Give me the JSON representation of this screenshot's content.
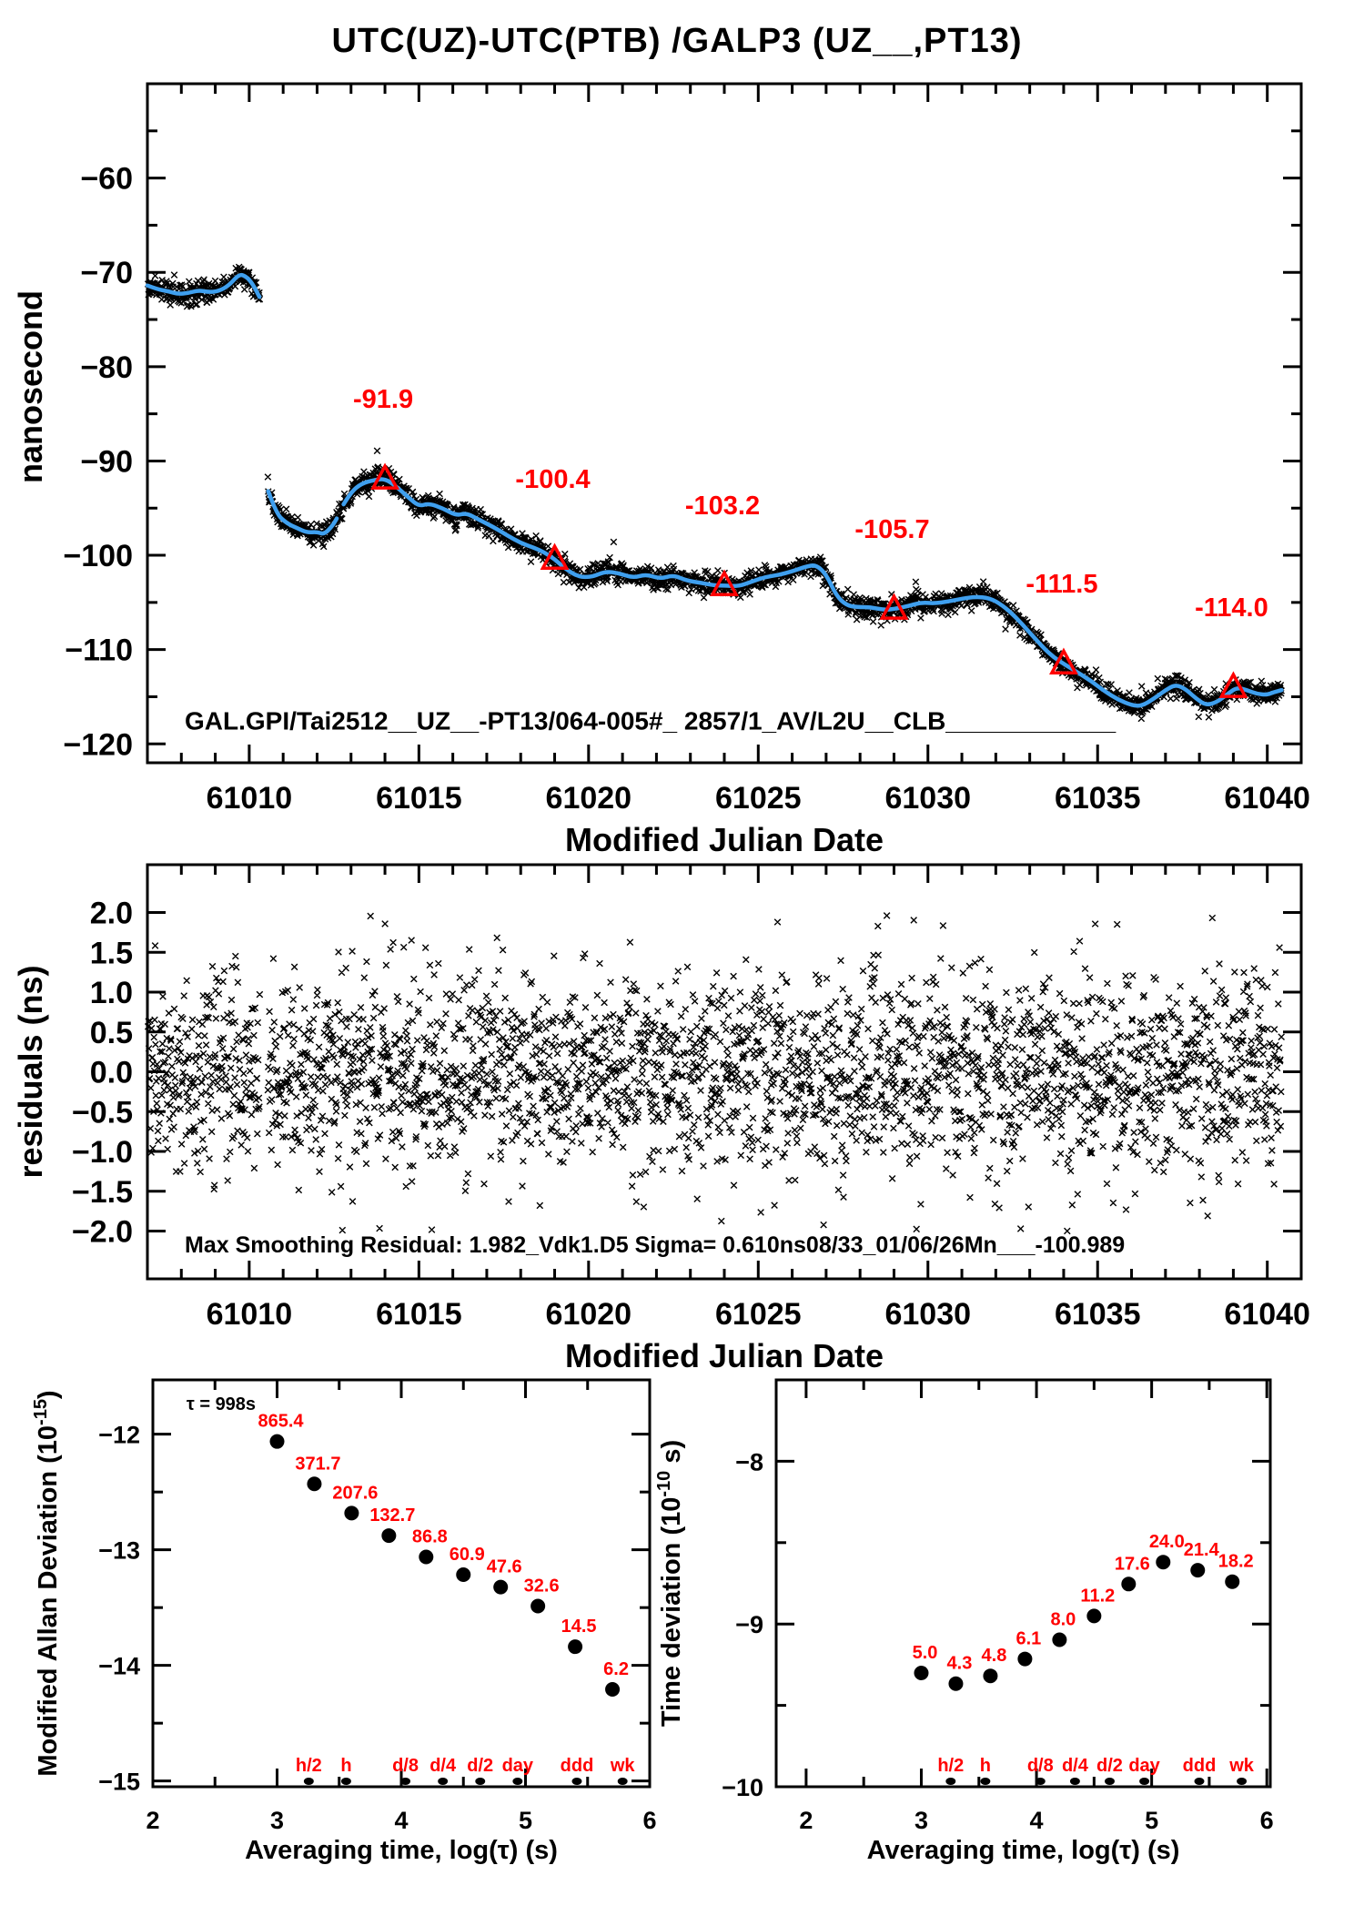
{
  "title": "UTC(UZ)-UTC(PTB)  /GALP3  (UZ__,PT13)",
  "colors": {
    "red": "#ff0000",
    "blue": "#3f9fee",
    "black": "#000000"
  },
  "chart_data": [
    {
      "id": "phase",
      "type": "line",
      "title": "UTC(UZ)-UTC(PTB)  /GALP3  (UZ__,PT13)",
      "xlabel": "Modified Julian Date",
      "ylabel": "nanosecond",
      "xlim": [
        61007,
        61041
      ],
      "ylim": [
        -122,
        -50
      ],
      "xticks": [
        61010,
        61015,
        61020,
        61025,
        61030,
        61035,
        61040
      ],
      "yticks": [
        -60,
        -70,
        -80,
        -90,
        -100,
        -110,
        -120
      ],
      "annotation": "GAL.GPI/Tai2512__UZ__-PT13/064-005#_  2857/1_AV/L2U__CLB____________",
      "annotation_pos": [
        61008.1,
        -118.5
      ],
      "scatter_sigma_ns": 0.52,
      "scatter_step_days": 0.0115,
      "gap_mjd": [
        61010.32,
        61010.55
      ],
      "calibration_points": [
        {
          "mjd": 61014,
          "ns": -91.9,
          "label": "-91.9"
        },
        {
          "mjd": 61019,
          "ns": -100.4,
          "label": "-100.4"
        },
        {
          "mjd": 61024,
          "ns": -103.2,
          "label": "-103.2"
        },
        {
          "mjd": 61029,
          "ns": -105.7,
          "label": "-105.7"
        },
        {
          "mjd": 61034,
          "ns": -111.5,
          "label": "-111.5"
        },
        {
          "mjd": 61039,
          "ns": -114.0,
          "label": "-114.0"
        }
      ],
      "curve_segments": [
        [
          [
            61007.0,
            -71.4
          ],
          [
            61007.3,
            -71.8
          ],
          [
            61007.6,
            -72.0
          ],
          [
            61007.9,
            -72.3
          ],
          [
            61008.2,
            -72.2
          ],
          [
            61008.5,
            -71.9
          ],
          [
            61008.8,
            -72.1
          ],
          [
            61009.1,
            -72.0
          ],
          [
            61009.4,
            -71.4
          ],
          [
            61009.7,
            -70.2
          ],
          [
            61009.9,
            -70.4
          ],
          [
            61010.1,
            -71.2
          ],
          [
            61010.3,
            -72.6
          ]
        ],
        [
          [
            61010.56,
            -93.2
          ],
          [
            61010.8,
            -95.6
          ],
          [
            61011.1,
            -96.6
          ],
          [
            61011.4,
            -97.1
          ],
          [
            61011.7,
            -97.6
          ],
          [
            61012.0,
            -97.5
          ],
          [
            61012.2,
            -97.8
          ],
          [
            61012.45,
            -96.9
          ],
          [
            61012.58,
            -96.1
          ]
        ],
        [
          [
            61012.78,
            -94.6
          ],
          [
            61013.0,
            -93.3
          ],
          [
            61013.3,
            -92.4
          ],
          [
            61013.7,
            -92.0
          ],
          [
            61014.0,
            -91.9
          ],
          [
            61014.3,
            -92.6
          ],
          [
            61014.7,
            -93.9
          ],
          [
            61015.0,
            -94.8
          ],
          [
            61015.3,
            -94.5
          ],
          [
            61015.7,
            -95.0
          ],
          [
            61016.1,
            -95.8
          ],
          [
            61016.4,
            -95.5
          ],
          [
            61016.8,
            -96.3
          ],
          [
            61017.2,
            -97.0
          ],
          [
            61017.6,
            -97.9
          ],
          [
            61018.0,
            -98.7
          ],
          [
            61018.4,
            -99.2
          ],
          [
            61018.7,
            -99.7
          ],
          [
            61019.0,
            -100.4
          ],
          [
            61019.3,
            -101.4
          ],
          [
            61019.7,
            -102.3
          ],
          [
            61020.1,
            -102.3
          ],
          [
            61020.5,
            -101.7
          ],
          [
            61020.9,
            -101.9
          ],
          [
            61021.3,
            -102.4
          ],
          [
            61021.7,
            -102.0
          ],
          [
            61022.1,
            -102.5
          ],
          [
            61022.5,
            -102.1
          ],
          [
            61022.9,
            -102.7
          ],
          [
            61023.3,
            -102.9
          ],
          [
            61023.7,
            -103.2
          ],
          [
            61024.0,
            -103.2
          ],
          [
            61024.4,
            -103.3
          ],
          [
            61024.8,
            -102.8
          ],
          [
            61025.2,
            -102.3
          ],
          [
            61025.6,
            -102.1
          ],
          [
            61026.0,
            -101.7
          ],
          [
            61026.4,
            -101.2
          ],
          [
            61026.7,
            -101.0
          ],
          [
            61027.0,
            -102.0
          ],
          [
            61027.3,
            -104.3
          ],
          [
            61027.6,
            -105.3
          ],
          [
            61027.9,
            -105.5
          ],
          [
            61028.3,
            -105.5
          ],
          [
            61028.7,
            -105.8
          ],
          [
            61029.0,
            -105.7
          ],
          [
            61029.4,
            -105.4
          ],
          [
            61029.8,
            -105.0
          ],
          [
            61030.2,
            -105.1
          ],
          [
            61030.6,
            -104.9
          ],
          [
            61031.0,
            -104.6
          ],
          [
            61031.4,
            -104.4
          ],
          [
            61031.8,
            -104.5
          ],
          [
            61032.2,
            -105.3
          ],
          [
            61032.6,
            -106.6
          ],
          [
            61033.0,
            -108.2
          ],
          [
            61033.4,
            -109.8
          ],
          [
            61033.7,
            -110.8
          ],
          [
            61034.0,
            -111.5
          ],
          [
            61034.4,
            -112.4
          ],
          [
            61034.8,
            -113.3
          ],
          [
            61035.2,
            -114.4
          ],
          [
            61035.6,
            -115.3
          ],
          [
            61036.0,
            -115.9
          ],
          [
            61036.3,
            -116.0
          ],
          [
            61036.7,
            -115.1
          ],
          [
            61037.0,
            -114.3
          ],
          [
            61037.3,
            -113.7
          ],
          [
            61037.6,
            -114.2
          ],
          [
            61037.9,
            -115.2
          ],
          [
            61038.2,
            -115.9
          ],
          [
            61038.5,
            -115.6
          ],
          [
            61038.8,
            -114.8
          ],
          [
            61039.1,
            -114.0
          ],
          [
            61039.4,
            -114.3
          ],
          [
            61039.7,
            -114.7
          ],
          [
            61040.0,
            -114.8
          ],
          [
            61040.2,
            -114.5
          ],
          [
            61040.42,
            -114.3
          ]
        ]
      ]
    },
    {
      "id": "residuals",
      "type": "scatter",
      "xlabel": "Modified Julian Date",
      "ylabel": "residuals (ns)",
      "xlim": [
        61007,
        61041
      ],
      "ylim": [
        -2.6,
        2.6
      ],
      "xticks": [
        61010,
        61015,
        61020,
        61025,
        61030,
        61035,
        61040
      ],
      "yticks": [
        2.0,
        1.5,
        1.0,
        0.5,
        0.0,
        -0.5,
        -1.0,
        -1.5,
        -2.0
      ],
      "sigma_ns": 0.61,
      "note": "Max Smoothing Residual: 1.982_Vdk1.D5  Sigma= 0.610ns08/33_01/06/26Mn___-100.989",
      "note_pos": [
        61008.1,
        -2.27
      ]
    },
    {
      "id": "mdev",
      "type": "scatter",
      "xlabel": "Averaging time, log(τ) (s)",
      "ylabel_pre": "Modified Allan Deviation (10",
      "ylabel_sup": "-15",
      "ylabel_post": ")",
      "tau_note": "τ = 998s",
      "tau_note_pos": [
        2.27,
        -11.79
      ],
      "xlim": [
        2,
        6
      ],
      "ylim": [
        -15.05,
        -11.53
      ],
      "xticks": [
        2,
        3,
        4,
        5,
        6
      ],
      "yticks": [
        -12,
        -13,
        -14,
        -15
      ],
      "log_tau": [
        3.0,
        3.3,
        3.6,
        3.9,
        4.2,
        4.5,
        4.8,
        5.1,
        5.4,
        5.7
      ],
      "values_1e15": [
        865.4,
        371.7,
        207.6,
        132.7,
        86.8,
        60.9,
        47.6,
        32.6,
        14.5,
        6.2
      ]
    },
    {
      "id": "tdev",
      "type": "scatter",
      "xlabel": "Averaging time, log(τ) (s)",
      "ylabel_pre": "Time deviation (10",
      "ylabel_sup": "-10",
      "ylabel_post": " s)",
      "xlim": [
        1.74,
        6.03
      ],
      "ylim": [
        -10.0,
        -7.5
      ],
      "xticks": [
        2,
        3,
        4,
        5,
        6
      ],
      "yticks": [
        -8,
        -9,
        -10
      ],
      "log_tau": [
        3.0,
        3.3,
        3.6,
        3.9,
        4.2,
        4.5,
        4.8,
        5.1,
        5.4,
        5.7
      ],
      "values_1e10": [
        5.0,
        4.3,
        4.8,
        6.1,
        8.0,
        11.2,
        17.6,
        24.0,
        21.4,
        18.2
      ]
    }
  ],
  "tau_marks": {
    "labels": [
      "h/2",
      "h",
      "d/8",
      "d/4",
      "d/2",
      "day",
      "ddd",
      "wk"
    ],
    "log_tau": [
      3.2553,
      3.5563,
      4.0334,
      4.3345,
      4.6355,
      4.9365,
      5.4137,
      5.7817
    ]
  }
}
